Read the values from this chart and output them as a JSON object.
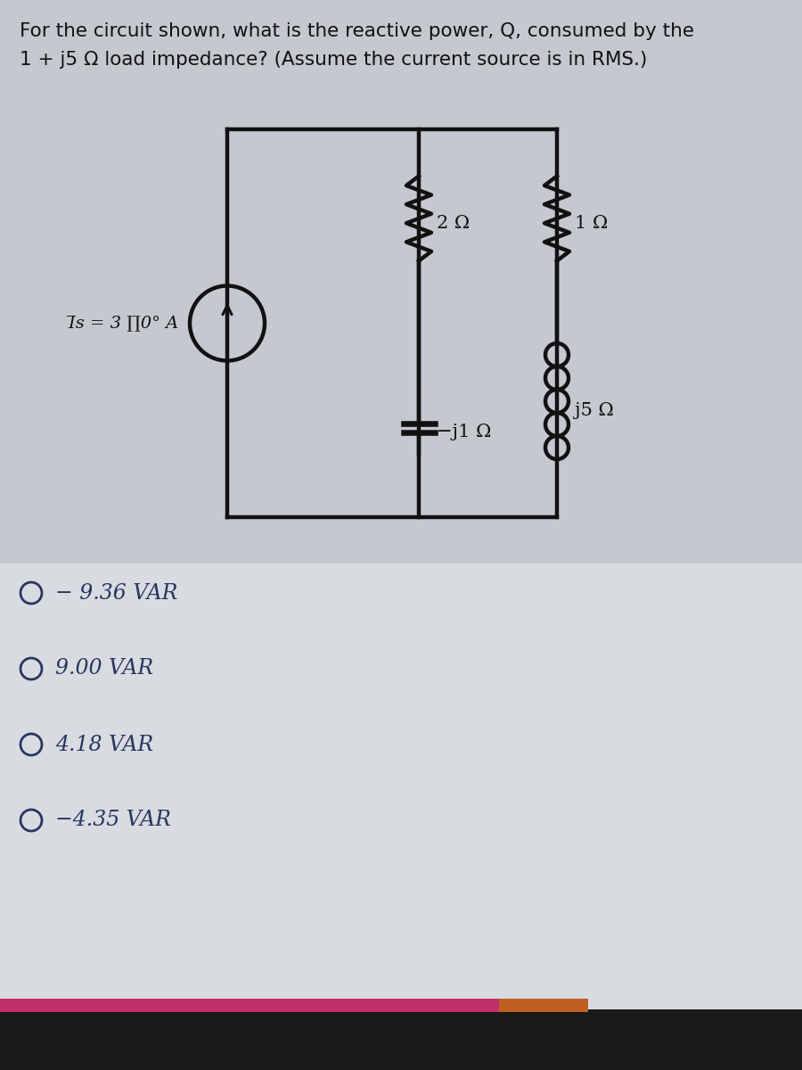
{
  "title_line1": "For the circuit shown, what is the reactive power, Q, consumed by the",
  "title_line2": "1 + j5 Ω load impedance? (Assume the current source is in RMS.)",
  "bg_color_circuit": "#c8cacf",
  "bg_color_answer": "#d5d8dc",
  "circuit_color": "#111111",
  "answer_color": "#2a3560",
  "choices": [
    "− 9.36 VAR",
    "9.00 VAR",
    "4.18 VAR",
    "−4.35 VAR"
  ],
  "is_label_left": "I̅s = 3 ∏0° A",
  "r2_label": "2 Ω",
  "r1_label": "1 Ω",
  "c_label": "−j1 Ω",
  "l_label": "j5 Ω",
  "pink_color": "#c0306a",
  "orange_color": "#c06020",
  "dark_color": "#1a1a1a"
}
